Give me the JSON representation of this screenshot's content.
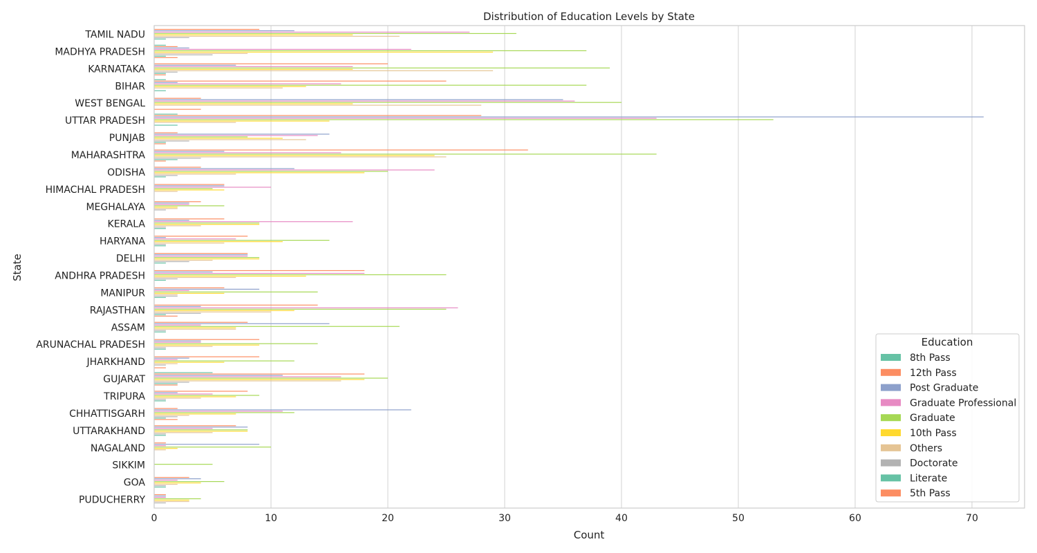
{
  "chart_data": {
    "type": "bar",
    "orientation": "horizontal",
    "title": "Distribution of Education Levels by State",
    "xlabel": "Count",
    "ylabel": "State",
    "xlim": [
      0,
      74.5
    ],
    "xticks": [
      0,
      10,
      20,
      30,
      40,
      50,
      60,
      70
    ],
    "grid": true,
    "legend_title": "Education",
    "legend_position": "bottom-right",
    "categories": [
      "TAMIL NADU",
      "MADHYA PRADESH",
      "KARNATAKA",
      "BIHAR",
      "WEST BENGAL",
      "UTTAR PRADESH",
      "PUNJAB",
      "MAHARASHTRA",
      "ODISHA",
      "HIMACHAL PRADESH",
      "MEGHALAYA",
      "KERALA",
      "HARYANA",
      "DELHI",
      "ANDHRA PRADESH",
      "MANIPUR",
      "RAJASTHAN",
      "ASSAM",
      "ARUNACHAL PRADESH",
      "JHARKHAND",
      "GUJARAT",
      "TRIPURA",
      "CHHATTISGARH",
      "UTTARAKHAND",
      "NAGALAND",
      "SIKKIM",
      "GOA",
      "PUDUCHERRY"
    ],
    "series": [
      {
        "name": "8th Pass",
        "color": "#66c2a5",
        "values": [
          0,
          1,
          0,
          1,
          0,
          2,
          0,
          0,
          0,
          0,
          0,
          0,
          0,
          0,
          0,
          0,
          0,
          0,
          0,
          0,
          5,
          0,
          0,
          0,
          0,
          0,
          0,
          0
        ]
      },
      {
        "name": "12th Pass",
        "color": "#fc8d62",
        "values": [
          9,
          2,
          20,
          25,
          4,
          28,
          2,
          32,
          4,
          6,
          4,
          6,
          8,
          8,
          18,
          6,
          14,
          8,
          9,
          9,
          18,
          8,
          2,
          7,
          1,
          0,
          3,
          1
        ]
      },
      {
        "name": "Post Graduate",
        "color": "#8da0cb",
        "values": [
          12,
          3,
          7,
          2,
          35,
          71,
          15,
          6,
          12,
          6,
          3,
          3,
          1,
          8,
          5,
          9,
          4,
          15,
          4,
          3,
          11,
          2,
          22,
          8,
          9,
          0,
          4,
          1
        ]
      },
      {
        "name": "Graduate Professional",
        "color": "#e78ac3",
        "values": [
          27,
          22,
          17,
          16,
          36,
          43,
          14,
          16,
          24,
          10,
          3,
          17,
          7,
          8,
          18,
          3,
          26,
          4,
          4,
          2,
          16,
          5,
          11,
          5,
          1,
          0,
          2,
          1
        ]
      },
      {
        "name": "Graduate",
        "color": "#a6d854",
        "values": [
          31,
          37,
          39,
          37,
          40,
          53,
          8,
          43,
          20,
          5,
          6,
          9,
          15,
          9,
          25,
          14,
          25,
          21,
          14,
          12,
          20,
          9,
          12,
          8,
          10,
          5,
          6,
          4
        ]
      },
      {
        "name": "10th Pass",
        "color": "#ffd92f",
        "values": [
          17,
          29,
          17,
          13,
          17,
          15,
          11,
          24,
          18,
          6,
          2,
          9,
          11,
          9,
          13,
          6,
          12,
          7,
          9,
          6,
          18,
          7,
          7,
          8,
          2,
          0,
          4,
          3
        ]
      },
      {
        "name": "Others",
        "color": "#e5c494",
        "values": [
          21,
          8,
          29,
          11,
          28,
          7,
          13,
          25,
          7,
          2,
          2,
          4,
          6,
          5,
          7,
          2,
          10,
          7,
          5,
          2,
          16,
          4,
          3,
          5,
          1,
          0,
          2,
          3
        ]
      },
      {
        "name": "Doctorate",
        "color": "#b3b3b3",
        "values": [
          3,
          5,
          2,
          0,
          0,
          0,
          3,
          4,
          2,
          0,
          1,
          1,
          1,
          3,
          2,
          2,
          4,
          1,
          1,
          1,
          3,
          1,
          2,
          1,
          0,
          0,
          1,
          1
        ]
      },
      {
        "name": "Literate",
        "color": "#66c2a5",
        "values": [
          1,
          1,
          1,
          1,
          0,
          2,
          1,
          2,
          1,
          0,
          0,
          1,
          1,
          1,
          1,
          1,
          1,
          1,
          1,
          0,
          2,
          1,
          1,
          1,
          0,
          0,
          1,
          0
        ]
      },
      {
        "name": "5th Pass",
        "color": "#fc8d62",
        "values": [
          0,
          2,
          1,
          0,
          4,
          0,
          1,
          1,
          0,
          0,
          0,
          0,
          0,
          0,
          0,
          0,
          2,
          0,
          0,
          1,
          2,
          0,
          2,
          0,
          0,
          0,
          0,
          0
        ]
      }
    ]
  }
}
